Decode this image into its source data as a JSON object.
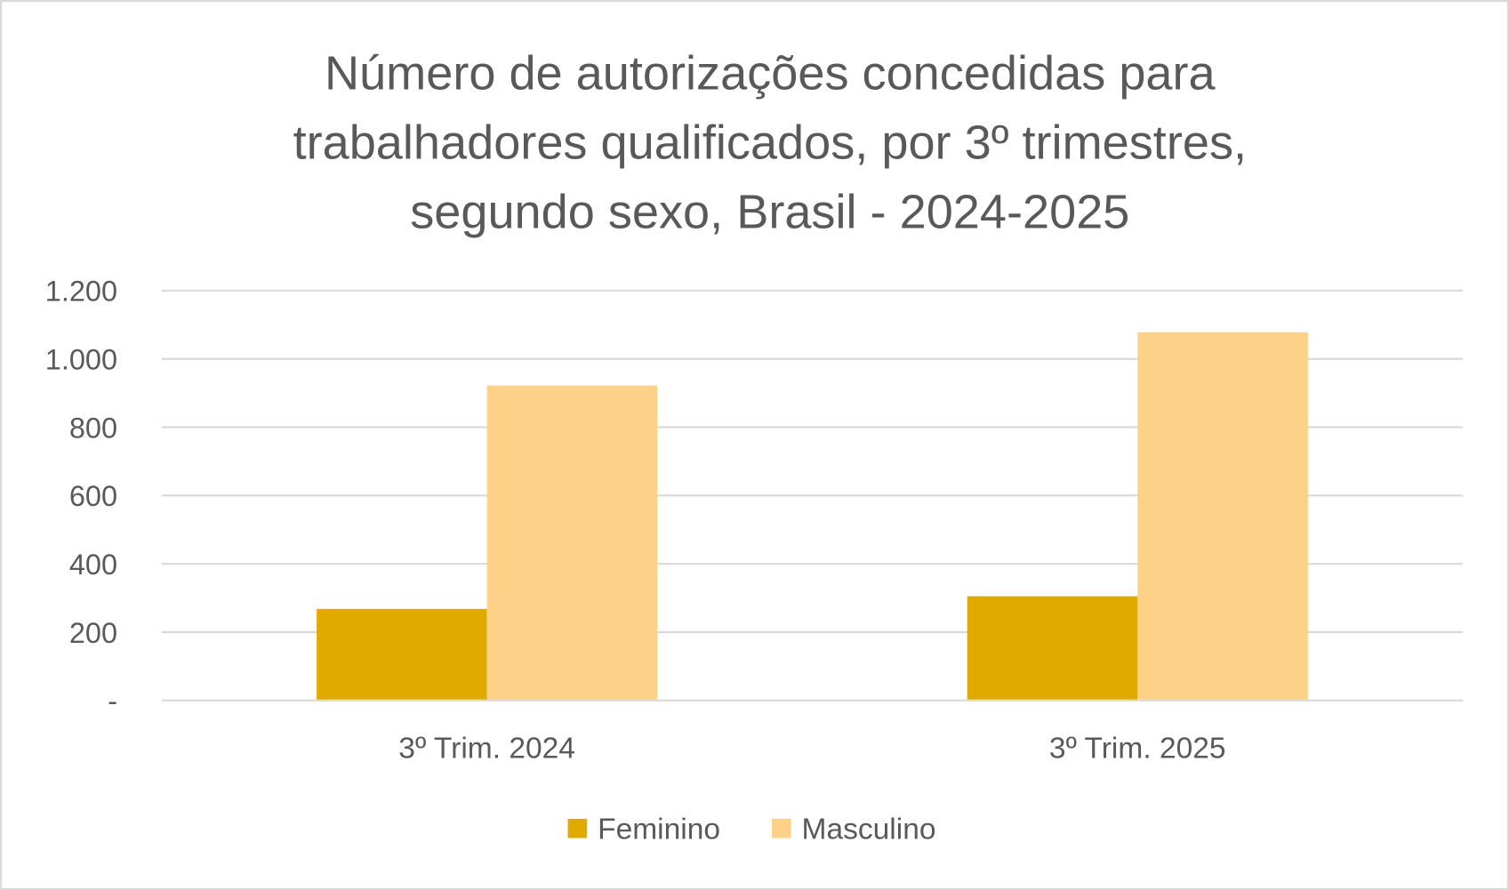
{
  "chart_data": {
    "type": "bar",
    "title_lines": [
      "Número de autorizações concedidas para",
      "trabalhadores qualificados, por 3º trimestres,",
      "segundo sexo, Brasil - 2024-2025"
    ],
    "categories": [
      "3º Trim. 2024",
      "3º Trim. 2025"
    ],
    "series": [
      {
        "name": "Feminino",
        "values": [
          268,
          305
        ],
        "color": "#E1AA00"
      },
      {
        "name": "Masculino",
        "values": [
          922,
          1078
        ],
        "color": "#FDD187"
      }
    ],
    "ylim": [
      0,
      1200
    ],
    "yticks": [
      0,
      200,
      400,
      600,
      800,
      1000,
      1200
    ],
    "ytick_labels": [
      "-",
      "200",
      "400",
      "600",
      "800",
      "1.000",
      "1.200"
    ],
    "xlabel": "",
    "ylabel": "",
    "grid": true,
    "legend_position": "bottom"
  }
}
